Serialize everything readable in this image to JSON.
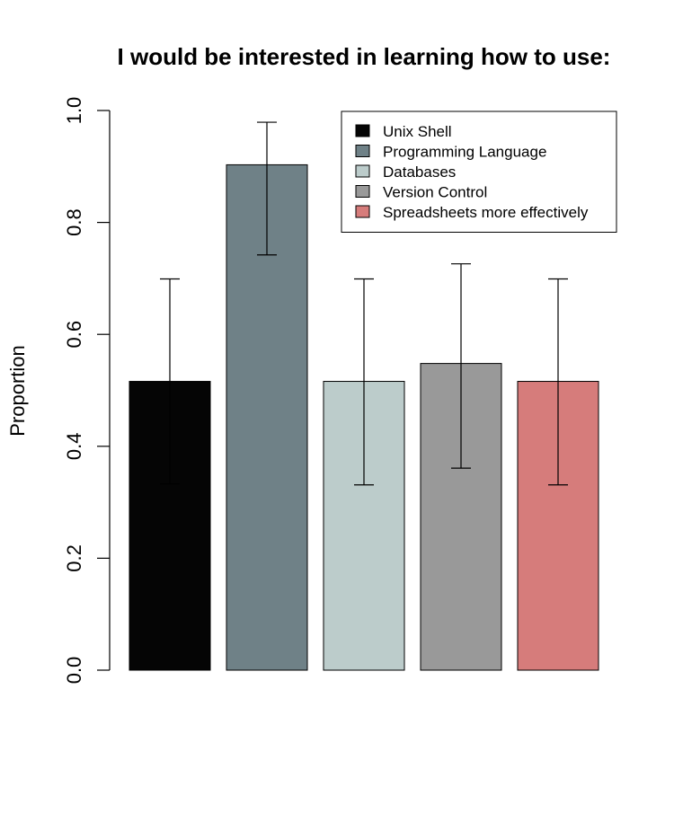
{
  "chart_data": {
    "type": "bar",
    "title": "I would be interested in learning how to use:",
    "xlabel": "",
    "ylabel": "Proportion",
    "ylim": [
      0,
      1
    ],
    "yticks": [
      0.0,
      0.2,
      0.4,
      0.6,
      0.8,
      1.0
    ],
    "ytick_labels": [
      "0.0",
      "0.2",
      "0.4",
      "0.6",
      "0.8",
      "1.0"
    ],
    "grid": false,
    "legend_position": "top-right",
    "categories": [
      "Unix Shell",
      "Programming Language",
      "Databases",
      "Version Control",
      "Spreadsheets more effectively"
    ],
    "values": [
      0.516,
      0.903,
      0.516,
      0.548,
      0.516
    ],
    "error_low": [
      0.333,
      0.742,
      0.331,
      0.361,
      0.331
    ],
    "error_high": [
      0.699,
      0.979,
      0.699,
      0.726,
      0.699
    ],
    "colors": [
      "#050505",
      "#6f8187",
      "#bccccb",
      "#999999",
      "#d67c7b"
    ]
  }
}
